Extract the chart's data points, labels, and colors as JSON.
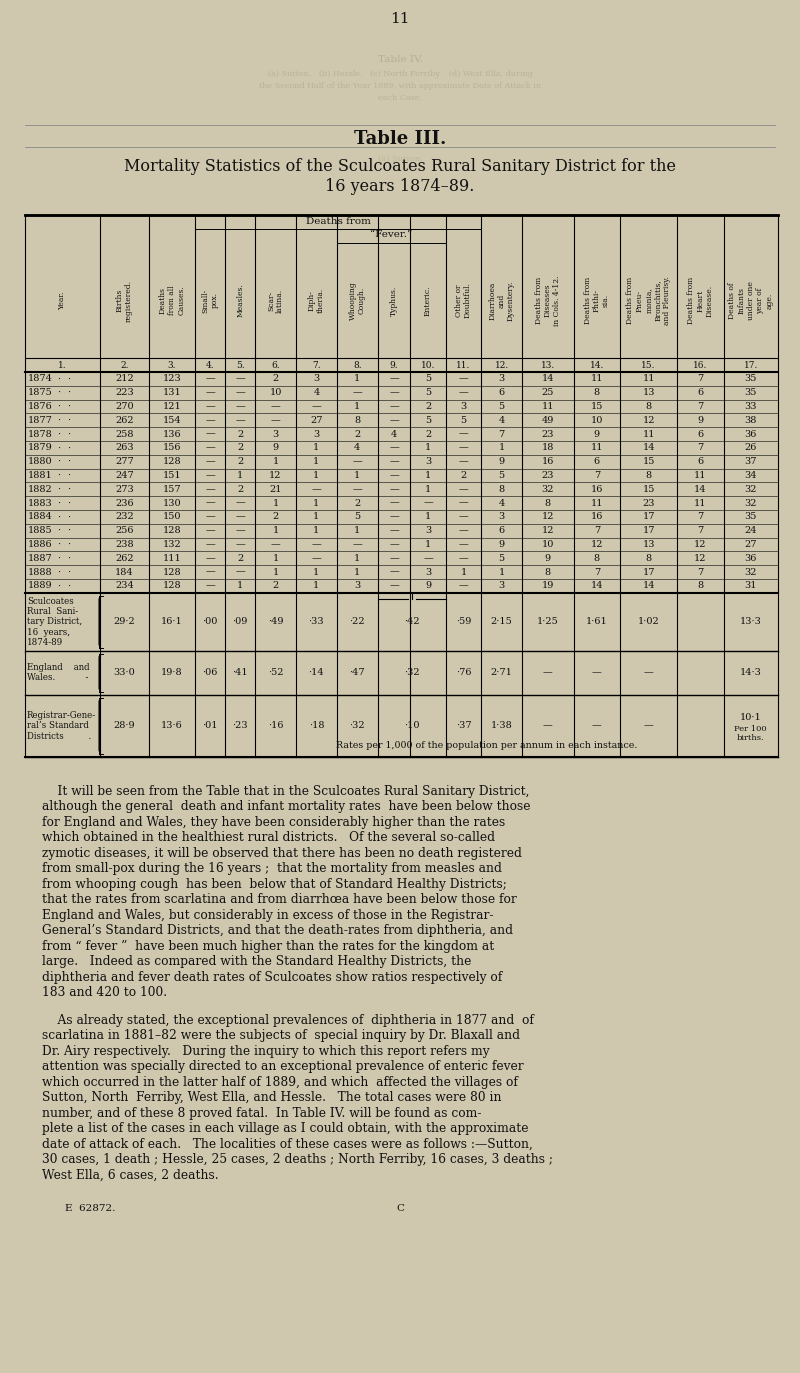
{
  "page_number": "11",
  "table_title": "Table III.",
  "table_subtitle": "Mortality Statistics of the Sculcoates Rural Sanitary District for the\n16 years 1874–89.",
  "bg_color": "#cfc8ae",
  "text_color": "#111111",
  "col_numbers": [
    "1.",
    "2.",
    "3.",
    "4.",
    "5.",
    "6.",
    "7.",
    "8.",
    "9.",
    "10.",
    "11.",
    "12.",
    "13.",
    "14.",
    "15.",
    "16.",
    "17."
  ],
  "fever_header": "“Fever.”",
  "deaths_from_header": "Deaths from",
  "data_rows": [
    [
      "1874",
      "·",
      "·",
      "212",
      "123",
      "—",
      "—",
      "2",
      "3",
      "1",
      "—",
      "5",
      "—",
      "3",
      "14",
      "11",
      "11",
      "7",
      "35"
    ],
    [
      "1875",
      "·",
      "·",
      "223",
      "131",
      "—",
      "—",
      "10",
      "4",
      "—",
      "—",
      "5",
      "—",
      "6",
      "25",
      "8",
      "13",
      "6",
      "35"
    ],
    [
      "1876",
      "·",
      "·",
      "270",
      "121",
      "—",
      "—",
      "—",
      "—",
      "1",
      "—",
      "2",
      "3",
      "5",
      "11",
      "15",
      "8",
      "7",
      "33"
    ],
    [
      "1877",
      "·",
      "·",
      "262",
      "154",
      "—",
      "—",
      "—",
      "27",
      "8",
      "—",
      "5",
      "5",
      "4",
      "49",
      "10",
      "12",
      "9",
      "38"
    ],
    [
      "1878",
      "·",
      "·",
      "258",
      "136",
      "—",
      "2",
      "3",
      "3",
      "2",
      "4",
      "2",
      "—",
      "7",
      "23",
      "9",
      "11",
      "6",
      "36"
    ],
    [
      "1879",
      "·",
      "·",
      "263",
      "156",
      "—",
      "2",
      "9",
      "1",
      "4",
      "—",
      "1",
      "—",
      "1",
      "18",
      "11",
      "14",
      "7",
      "26"
    ],
    [
      "1880",
      "·",
      "·",
      "277",
      "128",
      "—",
      "2",
      "1",
      "1",
      "—",
      "—",
      "3",
      "—",
      "9",
      "16",
      "6",
      "15",
      "6",
      "37"
    ],
    [
      "1881",
      "·",
      "·",
      "247",
      "151",
      "—",
      "1",
      "12",
      "1",
      "1",
      "—",
      "1",
      "2",
      "5",
      "23",
      "7",
      "8",
      "11",
      "34"
    ],
    [
      "1882",
      "·",
      "·",
      "273",
      "157",
      "—",
      "2",
      "21",
      "—",
      "—",
      "—",
      "1",
      "—",
      "8",
      "32",
      "16",
      "15",
      "14",
      "32"
    ],
    [
      "1883",
      "·",
      "·",
      "236",
      "130",
      "—",
      "—",
      "1",
      "1",
      "2",
      "—",
      "—",
      "—",
      "4",
      "8",
      "11",
      "23",
      "11",
      "32"
    ],
    [
      "1884",
      "·",
      "·",
      "232",
      "150",
      "—",
      "—",
      "2",
      "1",
      "5",
      "—",
      "1",
      "—",
      "3",
      "12",
      "16",
      "17",
      "7",
      "35"
    ],
    [
      "1885",
      "·",
      "·",
      "256",
      "128",
      "—",
      "—",
      "1",
      "1",
      "1",
      "—",
      "3",
      "—",
      "6",
      "12",
      "7",
      "17",
      "7",
      "24"
    ],
    [
      "1886",
      "·",
      "·",
      "238",
      "132",
      "—",
      "—",
      "—",
      "—",
      "—",
      "—",
      "1",
      "—",
      "9",
      "10",
      "12",
      "13",
      "12",
      "27"
    ],
    [
      "1887",
      "·",
      "·",
      "262",
      "111",
      "—",
      "2",
      "1",
      "—",
      "1",
      "—",
      "—",
      "—",
      "5",
      "9",
      "8",
      "8",
      "12",
      "36"
    ],
    [
      "1888",
      "·",
      "·",
      "184",
      "128",
      "—",
      "—",
      "1",
      "1",
      "1",
      "—",
      "3",
      "1",
      "1",
      "8",
      "7",
      "17",
      "7",
      "32"
    ],
    [
      "1889",
      "·",
      "·",
      "234",
      "128",
      "—",
      "1",
      "2",
      "1",
      "3",
      "—",
      "9",
      "—",
      "3",
      "19",
      "14",
      "14",
      "8",
      "31"
    ]
  ],
  "summary_rows": [
    {
      "label": "Sculcoates\nRural  Sani-\ntary District,\n16  years,\n1874-89",
      "bracket": true,
      "col2": "29·2",
      "col3": "16·1",
      "col4": "·00",
      "col5": "·09",
      "col6": "·49",
      "col7": "·33",
      "col8": "·22",
      "fever_merged": "·42",
      "col11": "·59",
      "col12": "2·15",
      "col13": "1·25",
      "col14": "1·61",
      "col15": "1·02",
      "col16": "13·3"
    },
    {
      "label": "England    and\nWales.           -",
      "bracket": true,
      "col2": "33·0",
      "col3": "19·8",
      "col4": "·06",
      "col5": "·41",
      "col6": "·52",
      "col7": "·14",
      "col8": "·47",
      "fever_merged": "·32",
      "col11": "·76",
      "col12": "2·71",
      "col13": "—",
      "col14": "—",
      "col15": "—",
      "col16": "14·3"
    },
    {
      "label": "Registrar-Gene-\nral’s Standard\nDistricts         .",
      "bracket": true,
      "col2": "28·9",
      "col3": "13·6",
      "col4": "·01",
      "col5": "·23",
      "col6": "·16",
      "col7": "·18",
      "col8": "·32",
      "fever_merged": "·10",
      "col11": "·37",
      "col12": "1·38",
      "col13": "—",
      "col14": "—",
      "col15": "—",
      "col16": "10·1"
    }
  ],
  "rates_note": "Rates per 1,000 of the population per annum in each instance.",
  "per100_births": "Per 100\nbirths.",
  "body_text": [
    "It will be seen from the Table that in the Sculcoates Rural Sanitary District,",
    "although the general  death and infant mortality rates  have been below those",
    "for England and Wales, they have been considerably higher than the rates",
    "which obtained in the healthiest rural districts.   Of the several so-called",
    "zymotic diseases, it will be observed that there has been no death registered",
    "from small-pox during the 16 years ;  that the mortality from measles and",
    "from whooping cough  has been  below that of Standard Healthy Districts;",
    "that the rates from scarlatina and from diarrhœa have been below those for",
    "England and Wales, but considerably in excess of those in the Registrar-",
    "General’s Standard Districts, and that the death-rates from diphtheria, and",
    "from “ fever ”  have been much higher than the rates for the kingdom at",
    "large.   Indeed as compared with the Standard Healthy Districts, the",
    "diphtheria and fever death rates of Sculcoates show ratios respectively of",
    "183 and 420 to 100."
  ],
  "body_text2": [
    "As already stated, the exceptional prevalences of  diphtheria in 1877 and  of",
    "scarlatina in 1881–82 were the subjects of  special inquiry by Dr. Blaxall and",
    "Dr. Airy respectively.   During the inquiry to which this report refers my",
    "attention was specially directed to an exceptional prevalence of enteric fever",
    "which occurred in the latter half of 1889, and which  affected the villages of",
    "Sutton, North  Ferriby, West Ella, and Hessle.   The total cases were 80 in",
    "number, and of these 8 proved fatal.  In Table IV. will be found as com-",
    "plete a list of the cases in each village as I could obtain, with the approximate",
    "date of attack of each.   The localities of these cases were as follows :—Sutton,",
    "30 cases, 1 death ; Hessle, 25 cases, 2 deaths ; North Ferriby, 16 cases, 3 deaths ;",
    "West Ella, 6 cases, 2 deaths."
  ],
  "footer_left": "E  62872.",
  "footer_center": "C",
  "ghost_lines": [
    "(a) Sutton.   (b) Hessle.   (c) North Ferriby.   (d) West Ella, during",
    "the Second Half of the Year 1889, with approximate Date of Attack in",
    "each Case."
  ]
}
